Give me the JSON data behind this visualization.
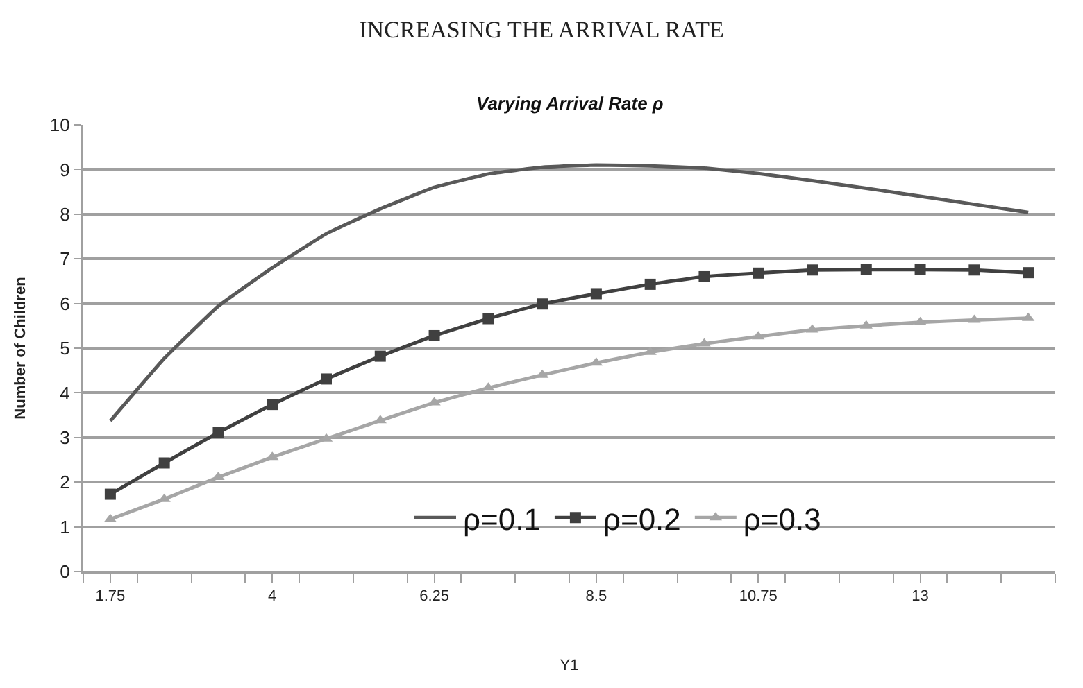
{
  "chart_data": {
    "type": "line",
    "title": "INCREASING THE ARRIVAL RATE",
    "subtitle": "Varying Arrival Rate ρ",
    "xlabel": "Y1",
    "ylabel": "Number of Children",
    "x": [
      1.75,
      2.5,
      3.25,
      4,
      4.75,
      5.5,
      6.25,
      7,
      7.75,
      8.5,
      9.25,
      10,
      10.75,
      11.5,
      12.25,
      13,
      13.75,
      14.5
    ],
    "series": [
      {
        "name": "ρ=0.1",
        "color": "#595959",
        "marker": "none",
        "values": [
          3.37,
          4.77,
          5.94,
          6.8,
          7.56,
          8.12,
          8.6,
          8.9,
          9.05,
          9.1,
          9.08,
          9.03,
          8.91,
          8.75,
          8.58,
          8.4,
          8.22,
          8.04
        ]
      },
      {
        "name": "ρ=0.2",
        "color": "#404040",
        "marker": "square",
        "values": [
          1.73,
          2.43,
          3.11,
          3.74,
          4.31,
          4.82,
          5.28,
          5.66,
          5.99,
          6.22,
          6.43,
          6.6,
          6.68,
          6.75,
          6.76,
          6.76,
          6.75,
          6.69
        ]
      },
      {
        "name": "ρ=0.3",
        "color": "#a6a6a6",
        "marker": "triangle",
        "values": [
          1.17,
          1.62,
          2.11,
          2.56,
          2.97,
          3.38,
          3.78,
          4.11,
          4.4,
          4.67,
          4.91,
          5.1,
          5.26,
          5.41,
          5.5,
          5.58,
          5.63,
          5.67
        ]
      }
    ],
    "xlim": [
      1.375,
      14.875
    ],
    "xticks": [
      {
        "value": 1.375,
        "label": null
      },
      {
        "value": 1.75,
        "label": "1.75"
      },
      {
        "value": 2.125,
        "label": null
      },
      {
        "value": 2.875,
        "label": null
      },
      {
        "value": 3.625,
        "label": null
      },
      {
        "value": 4,
        "label": "4"
      },
      {
        "value": 4.375,
        "label": null
      },
      {
        "value": 5.125,
        "label": null
      },
      {
        "value": 5.875,
        "label": null
      },
      {
        "value": 6.25,
        "label": "6.25"
      },
      {
        "value": 6.625,
        "label": null
      },
      {
        "value": 7.375,
        "label": null
      },
      {
        "value": 8.125,
        "label": null
      },
      {
        "value": 8.5,
        "label": "8.5"
      },
      {
        "value": 8.875,
        "label": null
      },
      {
        "value": 9.625,
        "label": null
      },
      {
        "value": 10.375,
        "label": null
      },
      {
        "value": 10.75,
        "label": "10.75"
      },
      {
        "value": 11.125,
        "label": null
      },
      {
        "value": 11.875,
        "label": null
      },
      {
        "value": 12.625,
        "label": null
      },
      {
        "value": 13,
        "label": "13"
      },
      {
        "value": 13.375,
        "label": null
      },
      {
        "value": 14.125,
        "label": null
      },
      {
        "value": 14.875,
        "label": null
      }
    ],
    "ylim": [
      0,
      10
    ],
    "yticks": [
      0,
      1,
      2,
      3,
      4,
      5,
      6,
      7,
      8,
      9,
      10
    ],
    "grid": "y",
    "legend": "bottom",
    "line_style": "solid"
  }
}
